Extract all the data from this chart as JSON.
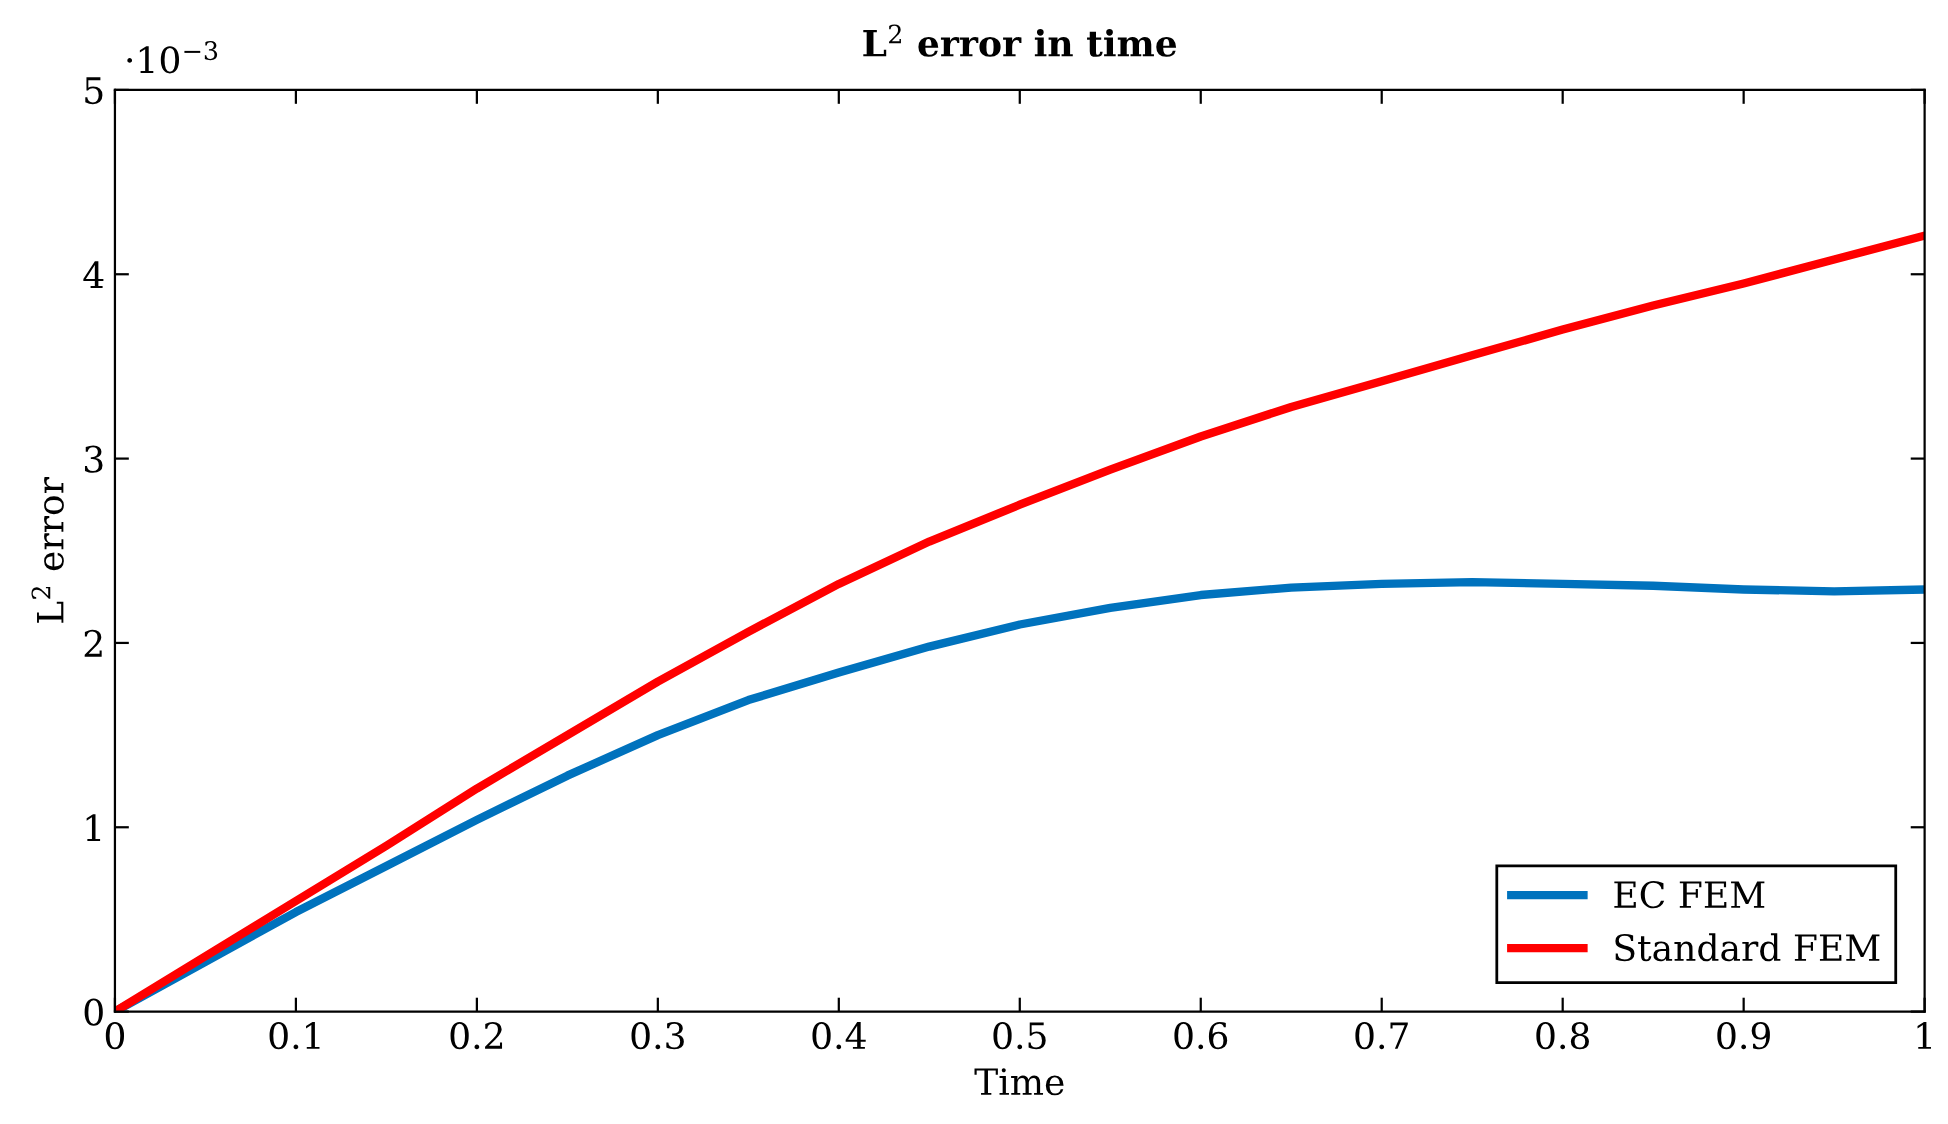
{
  "chart_data": {
    "type": "line",
    "title": "L$^{2}$ error in time",
    "xlabel": "Time",
    "ylabel": "L$^{2}$ error",
    "annotations": [
      "·10$^{−3}$"
    ],
    "xlim": [
      0,
      1
    ],
    "ylim": [
      0,
      5
    ],
    "xticks": [
      0,
      0.1,
      0.2,
      0.3,
      0.4,
      0.5,
      0.6,
      0.7,
      0.8,
      0.9,
      1
    ],
    "yticks": [
      0,
      1,
      2,
      3,
      4,
      5
    ],
    "x": [
      0,
      0.05,
      0.1,
      0.15,
      0.2,
      0.25,
      0.3,
      0.35,
      0.4,
      0.45,
      0.5,
      0.55,
      0.6,
      0.65,
      0.7,
      0.75,
      0.8,
      0.85,
      0.9,
      0.95,
      1
    ],
    "series": [
      {
        "name": "EC FEM",
        "color": "#0072bd",
        "values": [
          0,
          0.27,
          0.54,
          0.79,
          1.04,
          1.28,
          1.5,
          1.69,
          1.84,
          1.98,
          2.1,
          2.19,
          2.26,
          2.3,
          2.32,
          2.33,
          2.32,
          2.31,
          2.29,
          2.28,
          2.29
        ]
      },
      {
        "name": "Standard FEM",
        "color": "#ff0000",
        "values": [
          0,
          0.3,
          0.6,
          0.9,
          1.21,
          1.5,
          1.79,
          2.06,
          2.32,
          2.55,
          2.75,
          2.94,
          3.12,
          3.28,
          3.42,
          3.56,
          3.7,
          3.83,
          3.95,
          4.08,
          4.21
        ]
      }
    ],
    "legend": "bottom right",
    "grid": false,
    "marker": "none",
    "line_style": "solid"
  }
}
